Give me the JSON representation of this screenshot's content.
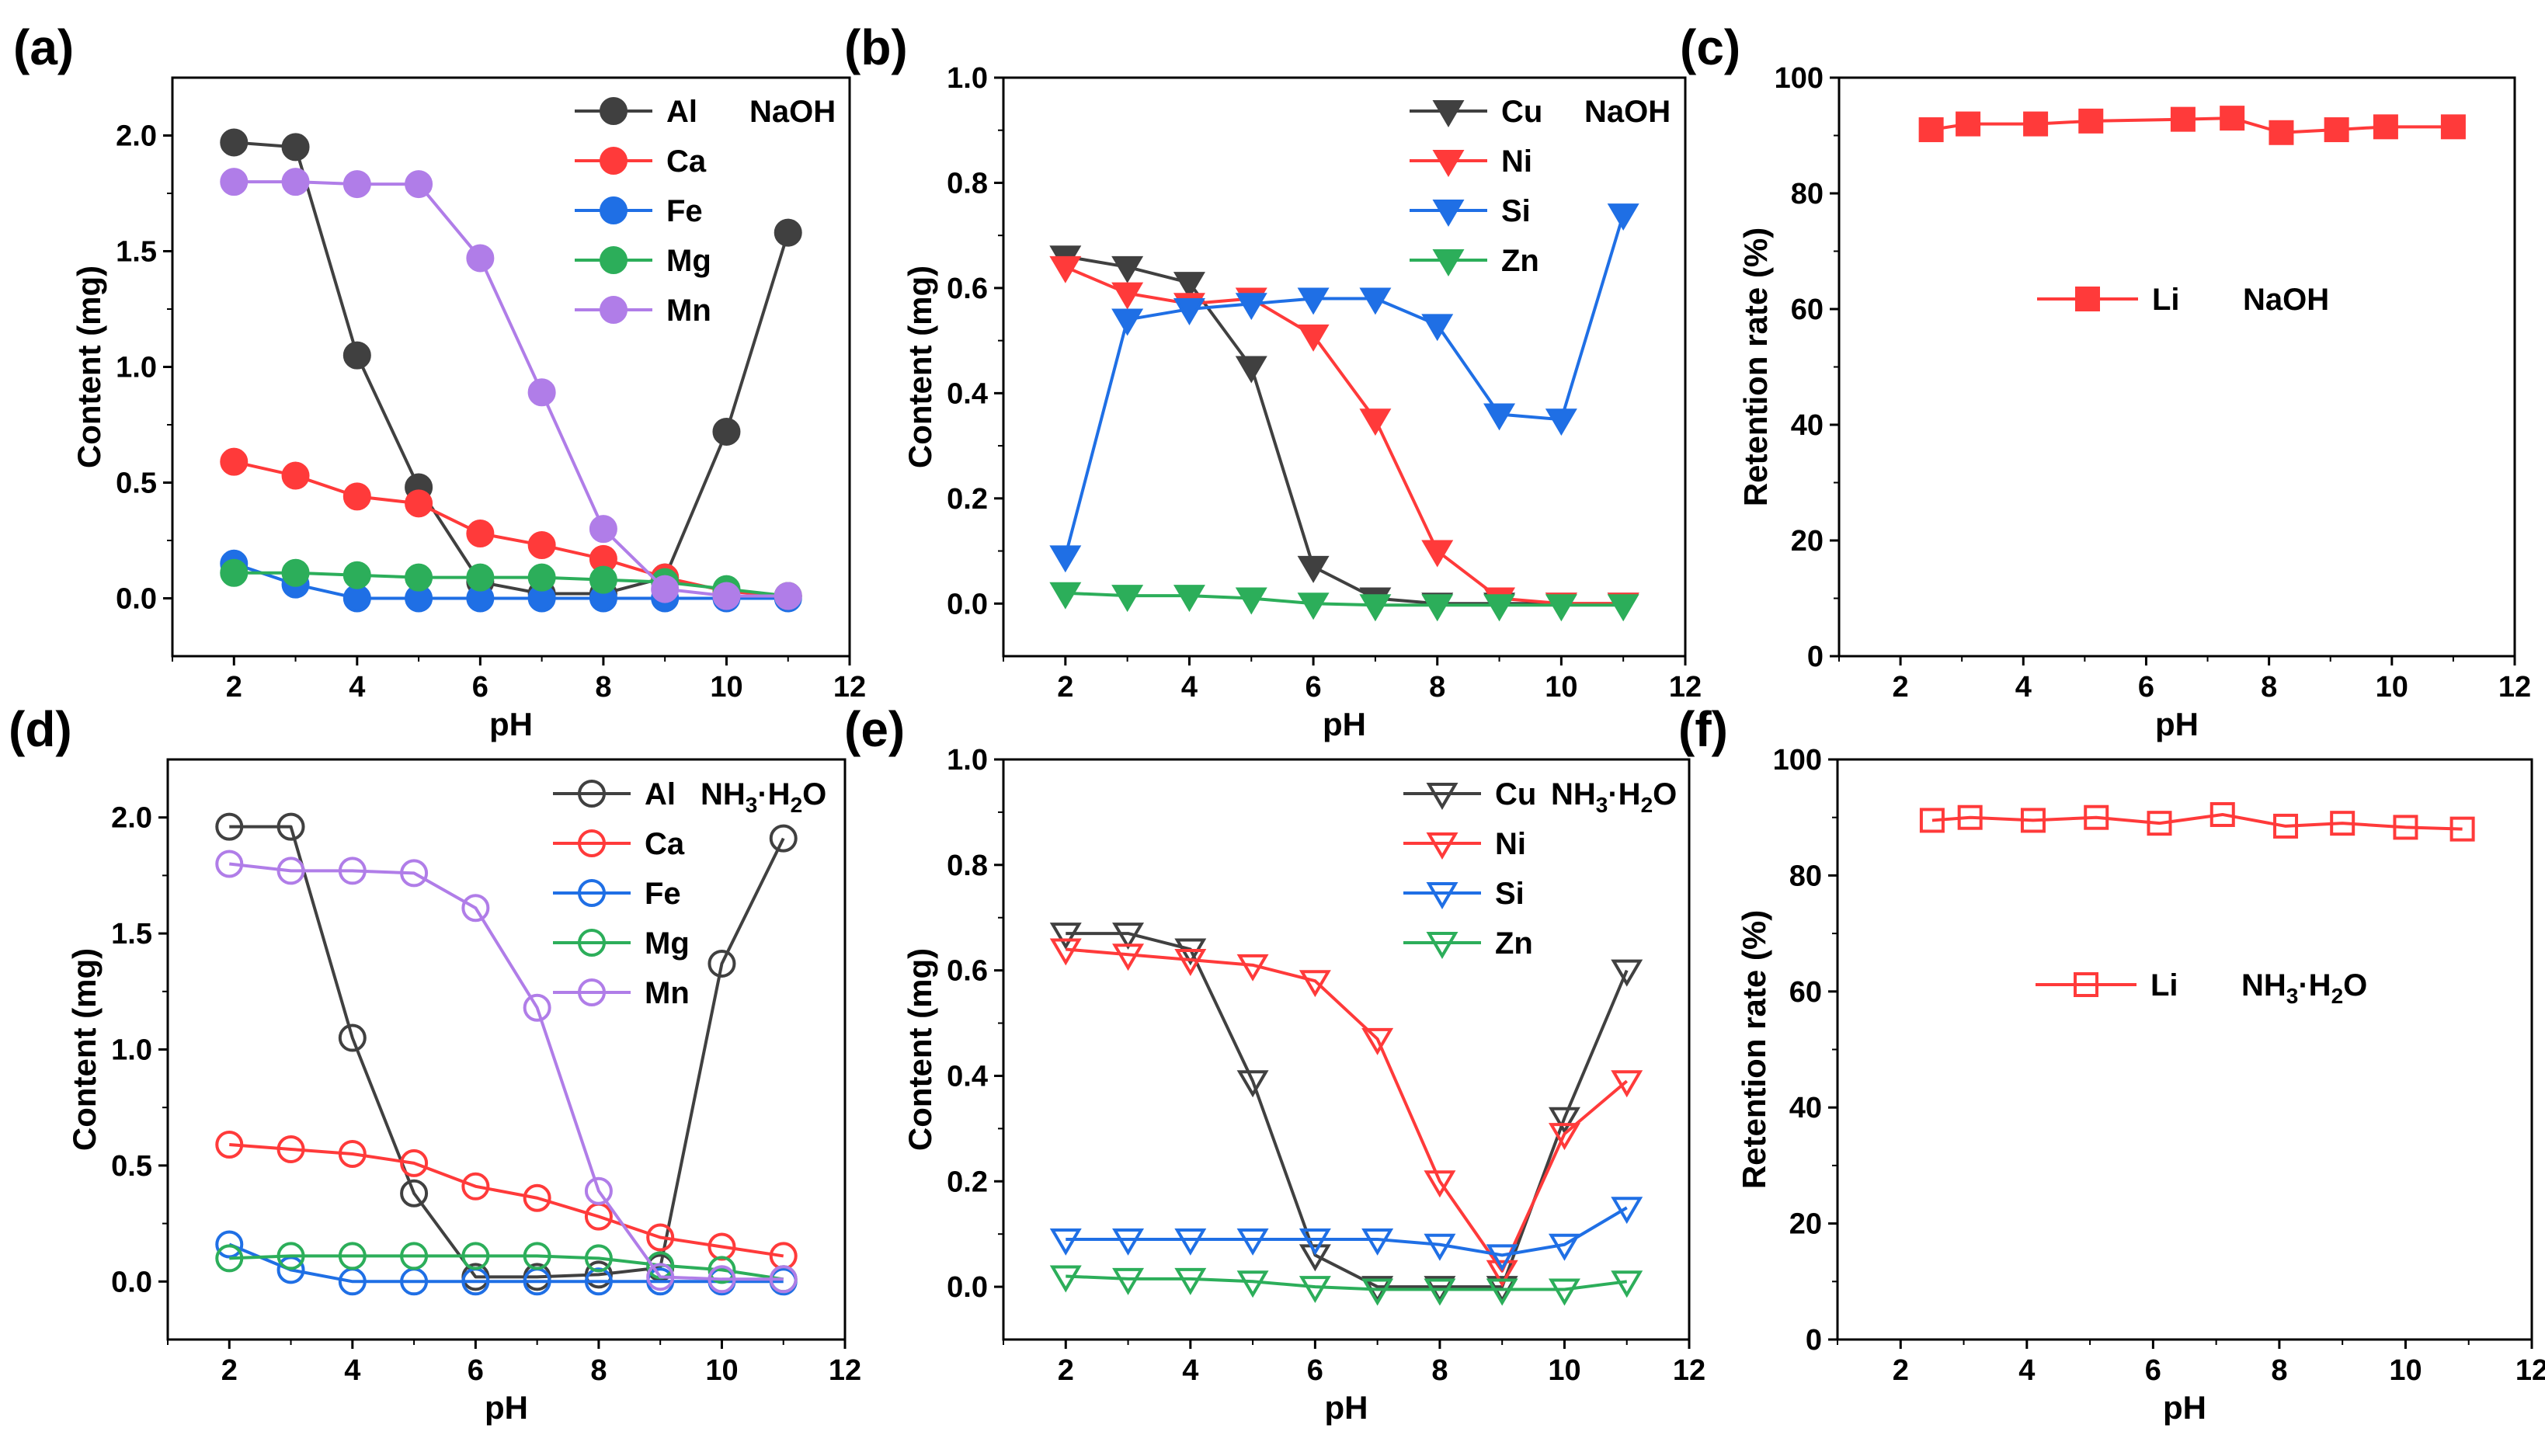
{
  "figure_title": "",
  "chart_data": [
    {
      "panel": "(a)",
      "type": "line",
      "title": "",
      "annotation": "NaOH",
      "xlabel": "pH",
      "ylabel": "Content (mg)",
      "xlim": [
        1,
        12
      ],
      "ylim": [
        -0.25,
        2.25
      ],
      "xticks": [
        2,
        4,
        6,
        8,
        10,
        12
      ],
      "yticks": [
        0.0,
        0.5,
        1.0,
        1.5,
        2.0
      ],
      "ytick_labels": [
        "0.0",
        "0.5",
        "1.0",
        "1.5",
        "2.0"
      ],
      "legend_position": "top-right",
      "marker": "circle-filled",
      "x": [
        2,
        3,
        4,
        5,
        6,
        7,
        8,
        9,
        10,
        11
      ],
      "series": [
        {
          "name": "Al",
          "color": "#404040",
          "values": [
            1.97,
            1.95,
            1.05,
            0.48,
            0.07,
            0.02,
            0.02,
            0.09,
            0.72,
            1.58
          ]
        },
        {
          "name": "Ca",
          "color": "#ff3a3a",
          "values": [
            0.59,
            0.53,
            0.44,
            0.41,
            0.28,
            0.23,
            0.17,
            0.09,
            0.03,
            0.01
          ]
        },
        {
          "name": "Fe",
          "color": "#1f6fe5",
          "values": [
            0.15,
            0.06,
            0.0,
            0.0,
            0.0,
            0.0,
            0.0,
            0.0,
            0.0,
            0.0
          ]
        },
        {
          "name": "Mg",
          "color": "#2cae5a",
          "values": [
            0.11,
            0.11,
            0.1,
            0.09,
            0.09,
            0.09,
            0.08,
            0.07,
            0.04,
            0.01
          ]
        },
        {
          "name": "Mn",
          "color": "#b07de8",
          "values": [
            1.8,
            1.8,
            1.79,
            1.79,
            1.47,
            0.89,
            0.3,
            0.04,
            0.01,
            0.01
          ]
        }
      ]
    },
    {
      "panel": "(b)",
      "type": "line",
      "title": "",
      "annotation": "NaOH",
      "xlabel": "pH",
      "ylabel": "Content (mg)",
      "xlim": [
        1,
        12
      ],
      "ylim": [
        -0.1,
        1.0
      ],
      "xticks": [
        2,
        4,
        6,
        8,
        10,
        12
      ],
      "yticks": [
        0.0,
        0.2,
        0.4,
        0.6,
        0.8,
        1.0
      ],
      "ytick_labels": [
        "0.0",
        "0.2",
        "0.4",
        "0.6",
        "0.8",
        "1.0"
      ],
      "legend_position": "top-right",
      "marker": "triangle-down-filled",
      "x": [
        2,
        3,
        4,
        5,
        6,
        7,
        8,
        9,
        10,
        11
      ],
      "series": [
        {
          "name": "Cu",
          "color": "#404040",
          "values": [
            0.66,
            0.64,
            0.61,
            0.45,
            0.07,
            0.01,
            0.0,
            0.0,
            0.0,
            0.0
          ]
        },
        {
          "name": "Ni",
          "color": "#ff3a3a",
          "values": [
            0.64,
            0.59,
            0.57,
            0.58,
            0.51,
            0.35,
            0.1,
            0.01,
            0.0,
            0.0
          ]
        },
        {
          "name": "Si",
          "color": "#1f6fe5",
          "values": [
            0.09,
            0.54,
            0.56,
            0.57,
            0.58,
            0.58,
            0.53,
            0.36,
            0.35,
            0.74
          ]
        },
        {
          "name": "Zn",
          "color": "#2cae5a",
          "values": [
            0.02,
            0.015,
            0.015,
            0.01,
            0.0,
            -0.003,
            -0.003,
            -0.003,
            -0.003,
            -0.003
          ]
        }
      ]
    },
    {
      "panel": "(c)",
      "type": "line",
      "title": "",
      "annotation": "NaOH",
      "xlabel": "pH",
      "ylabel": "Retention rate (%)",
      "xlim": [
        1,
        12
      ],
      "ylim": [
        0,
        100
      ],
      "xticks": [
        2,
        4,
        6,
        8,
        10,
        12
      ],
      "yticks": [
        0,
        20,
        40,
        60,
        80,
        100
      ],
      "ytick_labels": [
        "0",
        "20",
        "40",
        "60",
        "80",
        "100"
      ],
      "legend_position": "center",
      "marker": "square-filled",
      "series": [
        {
          "name": "Li",
          "color": "#ff3a3a",
          "x": [
            2.5,
            3.1,
            4.2,
            5.1,
            6.6,
            7.4,
            8.2,
            9.1,
            9.9,
            11.0
          ],
          "values": [
            91,
            92,
            92,
            92.5,
            92.8,
            93,
            90.5,
            91,
            91.5,
            91.5
          ]
        }
      ]
    },
    {
      "panel": "(d)",
      "type": "line",
      "title": "",
      "annotation": "NH3·H2O",
      "xlabel": "pH",
      "ylabel": "Content (mg)",
      "xlim": [
        1,
        12
      ],
      "ylim": [
        -0.25,
        2.25
      ],
      "xticks": [
        2,
        4,
        6,
        8,
        10,
        12
      ],
      "yticks": [
        0.0,
        0.5,
        1.0,
        1.5,
        2.0
      ],
      "ytick_labels": [
        "0.0",
        "0.5",
        "1.0",
        "1.5",
        "2.0"
      ],
      "legend_position": "top-right",
      "marker": "circle-open",
      "x": [
        2,
        3,
        4,
        5,
        6,
        7,
        8,
        9,
        10,
        11
      ],
      "series": [
        {
          "name": "Al",
          "color": "#404040",
          "values": [
            1.96,
            1.96,
            1.05,
            0.38,
            0.02,
            0.02,
            0.03,
            0.06,
            1.37,
            1.91
          ]
        },
        {
          "name": "Ca",
          "color": "#ff3a3a",
          "values": [
            0.59,
            0.57,
            0.55,
            0.51,
            0.41,
            0.36,
            0.28,
            0.19,
            0.15,
            0.11
          ]
        },
        {
          "name": "Fe",
          "color": "#1f6fe5",
          "values": [
            0.16,
            0.05,
            0.0,
            0.0,
            0.0,
            0.0,
            0.0,
            0.0,
            0.0,
            0.0
          ]
        },
        {
          "name": "Mg",
          "color": "#2cae5a",
          "values": [
            0.1,
            0.11,
            0.11,
            0.11,
            0.11,
            0.11,
            0.1,
            0.07,
            0.05,
            0.01
          ]
        },
        {
          "name": "Mn",
          "color": "#b07de8",
          "values": [
            1.8,
            1.77,
            1.77,
            1.76,
            1.61,
            1.18,
            0.39,
            0.02,
            0.01,
            0.01
          ]
        }
      ]
    },
    {
      "panel": "(e)",
      "type": "line",
      "title": "",
      "annotation": "NH3·H2O",
      "xlabel": "pH",
      "ylabel": "Content (mg)",
      "xlim": [
        1,
        12
      ],
      "ylim": [
        -0.1,
        1.0
      ],
      "xticks": [
        2,
        4,
        6,
        8,
        10,
        12
      ],
      "yticks": [
        0.0,
        0.2,
        0.4,
        0.6,
        0.8,
        1.0
      ],
      "ytick_labels": [
        "0.0",
        "0.2",
        "0.4",
        "0.6",
        "0.8",
        "1.0"
      ],
      "legend_position": "top-right",
      "marker": "triangle-down-open",
      "x": [
        2,
        3,
        4,
        5,
        6,
        7,
        8,
        9,
        10,
        11
      ],
      "series": [
        {
          "name": "Cu",
          "color": "#404040",
          "values": [
            0.67,
            0.67,
            0.64,
            0.39,
            0.06,
            0.0,
            0.0,
            0.0,
            0.32,
            0.6
          ]
        },
        {
          "name": "Ni",
          "color": "#ff3a3a",
          "values": [
            0.64,
            0.63,
            0.62,
            0.61,
            0.58,
            0.47,
            0.2,
            0.03,
            0.29,
            0.39
          ]
        },
        {
          "name": "Si",
          "color": "#1f6fe5",
          "values": [
            0.09,
            0.09,
            0.09,
            0.09,
            0.09,
            0.09,
            0.08,
            0.06,
            0.08,
            0.15
          ]
        },
        {
          "name": "Zn",
          "color": "#2cae5a",
          "values": [
            0.02,
            0.015,
            0.015,
            0.01,
            0.0,
            -0.005,
            -0.005,
            -0.005,
            -0.005,
            0.01
          ]
        }
      ]
    },
    {
      "panel": "(f)",
      "type": "line",
      "title": "",
      "annotation": "NH3·H2O",
      "xlabel": "pH",
      "ylabel": "Retention rate (%)",
      "xlim": [
        1,
        12
      ],
      "ylim": [
        0,
        100
      ],
      "xticks": [
        2,
        4,
        6,
        8,
        10,
        12
      ],
      "yticks": [
        0,
        20,
        40,
        60,
        80,
        100
      ],
      "ytick_labels": [
        "0",
        "20",
        "40",
        "60",
        "80",
        "100"
      ],
      "legend_position": "center",
      "marker": "square-open",
      "series": [
        {
          "name": "Li",
          "color": "#ff3a3a",
          "x": [
            2.5,
            3.1,
            4.1,
            5.1,
            6.1,
            7.1,
            8.1,
            9.0,
            10.0,
            10.9
          ],
          "values": [
            89.5,
            90,
            89.5,
            90,
            89,
            90.5,
            88.5,
            89,
            88.3,
            88
          ]
        }
      ]
    }
  ]
}
